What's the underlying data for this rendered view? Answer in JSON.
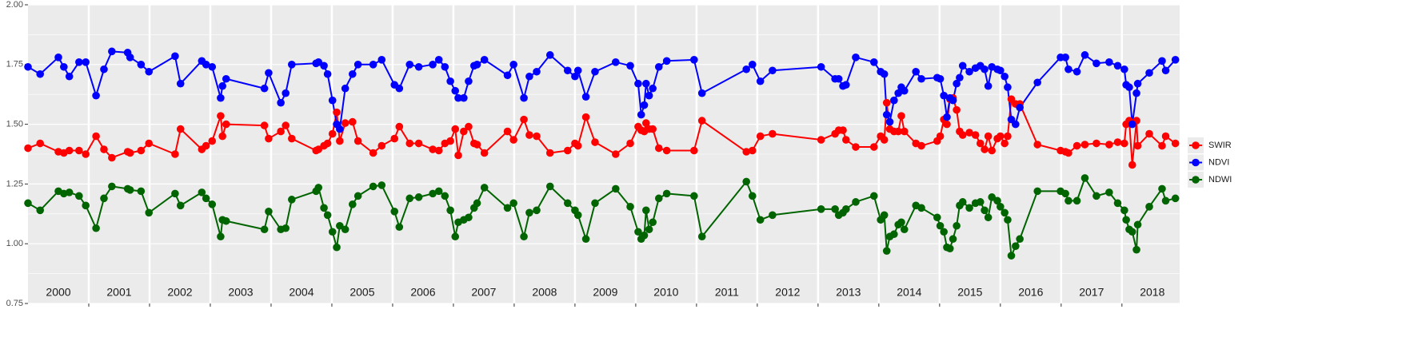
{
  "chart_data": {
    "type": "line",
    "xlim": [
      2000,
      2018.95
    ],
    "ylim": [
      0.75,
      2.0
    ],
    "yticks": [
      0.75,
      {
        "value": 1.0,
        "label": "1.00"
      },
      1.25,
      {
        "value": 1.5,
        "label": "1.50"
      },
      1.75,
      {
        "value": 2.0,
        "label": "2.00"
      }
    ],
    "xticks": [
      {
        "value": 2000.5,
        "label": "2000"
      },
      {
        "value": 2001.5,
        "label": "2001"
      },
      {
        "value": 2002.5,
        "label": "2002"
      },
      {
        "value": 2003.5,
        "label": "2003"
      },
      {
        "value": 2004.5,
        "label": "2004"
      },
      {
        "value": 2005.5,
        "label": "2005"
      },
      {
        "value": 2006.5,
        "label": "2006"
      },
      {
        "value": 2007.5,
        "label": "2007"
      },
      {
        "value": 2008.5,
        "label": "2008"
      },
      {
        "value": 2009.5,
        "label": "2009"
      },
      {
        "value": 2010.5,
        "label": "2010"
      },
      {
        "value": 2011.5,
        "label": "2011"
      },
      {
        "value": 2012.5,
        "label": "2012"
      },
      {
        "value": 2013.5,
        "label": "2013"
      },
      {
        "value": 2014.5,
        "label": "2014"
      },
      {
        "value": 2015.5,
        "label": "2015"
      },
      {
        "value": 2016.5,
        "label": "2016"
      },
      {
        "value": 2017.5,
        "label": "2017"
      },
      {
        "value": 2018.5,
        "label": "2018"
      }
    ],
    "xbreaks": [
      2001,
      2002,
      2003,
      2004,
      2005,
      2006,
      2007,
      2008,
      2009,
      2010,
      2011,
      2012,
      2013,
      2014,
      2015,
      2016,
      2017,
      2018
    ],
    "grid": true,
    "legend": "right",
    "x": [
      2000.0,
      2000.2,
      2000.5,
      2000.59,
      2000.68,
      2000.84,
      2000.95,
      2001.12,
      2001.25,
      2001.38,
      2001.64,
      2001.68,
      2001.86,
      2001.99,
      2002.42,
      2002.51,
      2002.86,
      2002.93,
      2003.03,
      2003.17,
      2003.2,
      2003.26,
      2003.89,
      2003.96,
      2004.16,
      2004.24,
      2004.34,
      2004.74,
      2004.78,
      2004.87,
      2004.93,
      2005.01,
      2005.08,
      2005.13,
      2005.22,
      2005.34,
      2005.43,
      2005.68,
      2005.82,
      2006.03,
      2006.11,
      2006.28,
      2006.43,
      2006.66,
      2006.76,
      2006.86,
      2006.95,
      2007.03,
      2007.08,
      2007.17,
      2007.25,
      2007.34,
      2007.39,
      2007.51,
      2007.89,
      2007.99,
      2008.16,
      2008.25,
      2008.37,
      2008.59,
      2008.88,
      2009.0,
      2009.05,
      2009.18,
      2009.33,
      2009.67,
      2009.91,
      2010.04,
      2010.09,
      2010.14,
      2010.17,
      2010.22,
      2010.28,
      2010.38,
      2010.51,
      2010.96,
      2011.09,
      2011.82,
      2011.92,
      2012.05,
      2012.25,
      2013.05,
      2013.28,
      2013.34,
      2013.41,
      2013.46,
      2013.62,
      2013.92,
      2014.03,
      2014.09,
      2014.13,
      2014.18,
      2014.25,
      2014.32,
      2014.37,
      2014.42,
      2014.61,
      2014.7,
      2014.96,
      2015.01,
      2015.07,
      2015.12,
      2015.17,
      2015.22,
      2015.28,
      2015.33,
      2015.38,
      2015.49,
      2015.59,
      2015.67,
      2015.74,
      2015.8,
      2015.86,
      2015.95,
      2016.0,
      2016.07,
      2016.12,
      2016.18,
      2016.25,
      2016.32,
      2016.61,
      2016.99,
      2017.07,
      2017.12,
      2017.26,
      2017.39,
      2017.58,
      2017.79,
      2017.93,
      2018.04,
      2018.07,
      2018.12,
      2018.17,
      2018.24,
      2018.26,
      2018.45,
      2018.66,
      2018.72,
      2018.88
    ],
    "series": [
      {
        "name": "SWIR",
        "color": "#ff0000",
        "values": [
          1.4,
          1.42,
          1.385,
          1.38,
          1.39,
          1.39,
          1.375,
          1.45,
          1.395,
          1.36,
          1.385,
          1.38,
          1.39,
          1.42,
          1.375,
          1.48,
          1.395,
          1.41,
          1.43,
          1.535,
          1.45,
          1.5,
          1.495,
          1.44,
          1.47,
          1.495,
          1.44,
          1.39,
          1.395,
          1.41,
          1.42,
          1.46,
          1.55,
          1.43,
          1.505,
          1.51,
          1.43,
          1.38,
          1.41,
          1.44,
          1.49,
          1.42,
          1.42,
          1.395,
          1.39,
          1.42,
          1.43,
          1.48,
          1.37,
          1.47,
          1.49,
          1.42,
          1.415,
          1.38,
          1.47,
          1.435,
          1.52,
          1.455,
          1.45,
          1.38,
          1.39,
          1.42,
          1.41,
          1.53,
          1.425,
          1.375,
          1.42,
          1.49,
          1.475,
          1.47,
          1.505,
          1.48,
          1.48,
          1.4,
          1.39,
          1.39,
          1.515,
          1.385,
          1.39,
          1.45,
          1.46,
          1.435,
          1.46,
          1.475,
          1.475,
          1.435,
          1.405,
          1.405,
          1.45,
          1.435,
          1.59,
          1.48,
          1.47,
          1.47,
          1.535,
          1.47,
          1.42,
          1.41,
          1.43,
          1.45,
          1.52,
          1.5,
          1.605,
          1.61,
          1.56,
          1.47,
          1.455,
          1.465,
          1.455,
          1.42,
          1.395,
          1.45,
          1.39,
          1.44,
          1.45,
          1.42,
          1.45,
          1.605,
          1.585,
          1.585,
          1.415,
          1.39,
          1.385,
          1.38,
          1.41,
          1.415,
          1.42,
          1.415,
          1.425,
          1.42,
          1.5,
          1.515,
          1.33,
          1.515,
          1.41,
          1.46,
          1.41,
          1.45,
          1.42
        ]
      },
      {
        "name": "NDVI",
        "color": "#0000ff",
        "values": [
          1.74,
          1.71,
          1.78,
          1.74,
          1.7,
          1.76,
          1.76,
          1.62,
          1.73,
          1.805,
          1.8,
          1.78,
          1.75,
          1.72,
          1.785,
          1.67,
          1.765,
          1.75,
          1.74,
          1.61,
          1.66,
          1.69,
          1.65,
          1.715,
          1.59,
          1.63,
          1.75,
          1.755,
          1.76,
          1.745,
          1.71,
          1.6,
          1.5,
          1.48,
          1.65,
          1.71,
          1.75,
          1.75,
          1.77,
          1.665,
          1.65,
          1.75,
          1.74,
          1.75,
          1.77,
          1.74,
          1.68,
          1.64,
          1.61,
          1.61,
          1.68,
          1.745,
          1.75,
          1.77,
          1.705,
          1.75,
          1.61,
          1.7,
          1.72,
          1.79,
          1.725,
          1.7,
          1.725,
          1.615,
          1.72,
          1.76,
          1.745,
          1.67,
          1.54,
          1.58,
          1.67,
          1.62,
          1.65,
          1.74,
          1.765,
          1.77,
          1.63,
          1.73,
          1.75,
          1.68,
          1.725,
          1.74,
          1.69,
          1.69,
          1.66,
          1.665,
          1.78,
          1.76,
          1.72,
          1.71,
          1.54,
          1.51,
          1.6,
          1.63,
          1.655,
          1.64,
          1.72,
          1.69,
          1.695,
          1.69,
          1.62,
          1.53,
          1.61,
          1.6,
          1.67,
          1.695,
          1.745,
          1.72,
          1.735,
          1.745,
          1.73,
          1.66,
          1.74,
          1.73,
          1.725,
          1.7,
          1.655,
          1.52,
          1.5,
          1.57,
          1.675,
          1.78,
          1.78,
          1.73,
          1.72,
          1.79,
          1.755,
          1.76,
          1.745,
          1.73,
          1.665,
          1.655,
          1.5,
          1.63,
          1.67,
          1.715,
          1.765,
          1.725,
          1.77
        ]
      },
      {
        "name": "NDWI",
        "color": "#006400",
        "values": [
          1.17,
          1.14,
          1.22,
          1.21,
          1.215,
          1.2,
          1.16,
          1.065,
          1.19,
          1.24,
          1.23,
          1.225,
          1.22,
          1.13,
          1.21,
          1.16,
          1.215,
          1.19,
          1.165,
          1.03,
          1.1,
          1.095,
          1.06,
          1.135,
          1.06,
          1.065,
          1.185,
          1.22,
          1.235,
          1.15,
          1.12,
          1.05,
          0.985,
          1.075,
          1.06,
          1.165,
          1.2,
          1.24,
          1.245,
          1.135,
          1.07,
          1.19,
          1.195,
          1.21,
          1.22,
          1.2,
          1.14,
          1.03,
          1.09,
          1.1,
          1.11,
          1.15,
          1.17,
          1.235,
          1.15,
          1.17,
          1.03,
          1.13,
          1.14,
          1.24,
          1.17,
          1.14,
          1.12,
          1.02,
          1.17,
          1.23,
          1.155,
          1.05,
          1.02,
          1.035,
          1.14,
          1.06,
          1.09,
          1.19,
          1.21,
          1.2,
          1.03,
          1.26,
          1.2,
          1.1,
          1.12,
          1.145,
          1.145,
          1.12,
          1.13,
          1.145,
          1.175,
          1.2,
          1.1,
          1.12,
          0.97,
          1.03,
          1.04,
          1.08,
          1.09,
          1.06,
          1.16,
          1.15,
          1.11,
          1.075,
          1.05,
          0.985,
          0.98,
          1.02,
          1.075,
          1.16,
          1.175,
          1.15,
          1.17,
          1.175,
          1.14,
          1.11,
          1.195,
          1.18,
          1.155,
          1.13,
          1.1,
          0.95,
          0.99,
          1.02,
          1.22,
          1.22,
          1.21,
          1.18,
          1.18,
          1.275,
          1.2,
          1.215,
          1.17,
          1.14,
          1.1,
          1.06,
          1.05,
          0.975,
          1.08,
          1.155,
          1.23,
          1.18,
          1.19
        ]
      }
    ]
  }
}
